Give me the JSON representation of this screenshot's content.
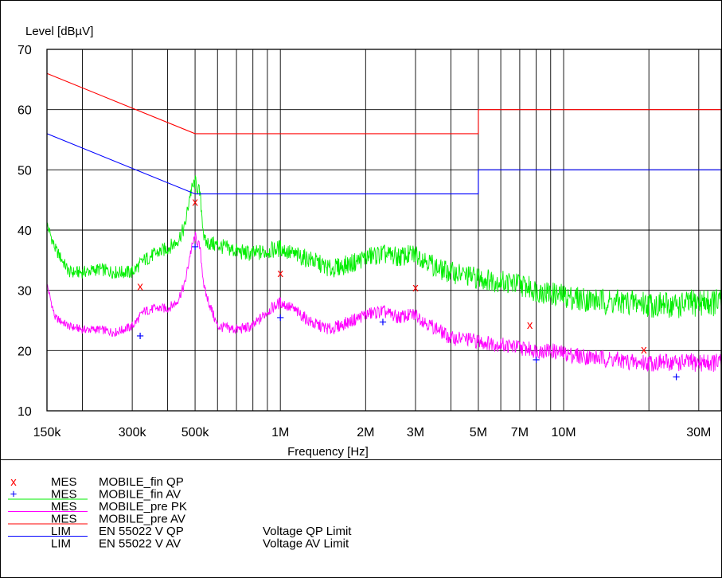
{
  "chart_data": {
    "type": "line",
    "title": "",
    "ylabel": "Level [dBµV]",
    "xlabel": "Frequency [Hz]",
    "x_scale": "log",
    "xlim": [
      150000,
      36000000
    ],
    "ylim": [
      10,
      70
    ],
    "grid": true,
    "x_ticks": [
      {
        "value": 150000,
        "label": "150k"
      },
      {
        "value": 300000,
        "label": "300k"
      },
      {
        "value": 500000,
        "label": "500k"
      },
      {
        "value": 1000000,
        "label": "1M"
      },
      {
        "value": 2000000,
        "label": "2M"
      },
      {
        "value": 3000000,
        "label": "3M"
      },
      {
        "value": 5000000,
        "label": "5M"
      },
      {
        "value": 7000000,
        "label": "7M"
      },
      {
        "value": 10000000,
        "label": "10M"
      },
      {
        "value": 30000000,
        "label": "30M"
      }
    ],
    "y_ticks": [
      {
        "value": 10,
        "label": "10"
      },
      {
        "value": 20,
        "label": "20"
      },
      {
        "value": 30,
        "label": "30"
      },
      {
        "value": 40,
        "label": "40"
      },
      {
        "value": 50,
        "label": "50"
      },
      {
        "value": 60,
        "label": "60"
      },
      {
        "value": 70,
        "label": "70"
      }
    ],
    "series": [
      {
        "name": "MOBILE_fin QP",
        "kind": "markers",
        "marker": "x",
        "color": "#ff0000",
        "x": [
          320000,
          500000,
          1000000,
          3000000,
          7600000,
          19200000
        ],
        "y": [
          30.8,
          44.8,
          33,
          30.6,
          24.4,
          20.3
        ]
      },
      {
        "name": "MOBILE_fin AV",
        "kind": "markers",
        "marker": "+",
        "color": "#0000ff",
        "x": [
          320000,
          500000,
          1000000,
          2300000,
          8000000,
          25000000
        ],
        "y": [
          22.5,
          37.3,
          25.5,
          24.8,
          18.5,
          15.7
        ]
      },
      {
        "name": "MOBILE_pre PK",
        "kind": "line",
        "color": "#00ee00",
        "x": [
          150000,
          160000,
          180000,
          200000,
          230000,
          260000,
          300000,
          330000,
          360000,
          400000,
          430000,
          460000,
          480000,
          500000,
          520000,
          540000,
          600000,
          700000,
          800000,
          900000,
          1000000,
          1100000,
          1300000,
          1500000,
          1800000,
          2000000,
          2300000,
          2600000,
          3000000,
          3300000,
          3600000,
          4000000,
          4500000,
          5000000,
          6000000,
          7000000,
          8000000,
          9000000,
          10000000,
          12000000,
          15000000,
          18000000,
          22000000,
          26000000,
          30000000,
          36000000
        ],
        "y": [
          41,
          37,
          33,
          33,
          33.5,
          33,
          33,
          35,
          36,
          37,
          38,
          40.5,
          46,
          48,
          46,
          38,
          37.5,
          36.5,
          36,
          36.5,
          37,
          36,
          35,
          33.5,
          34.5,
          35.5,
          36,
          35.5,
          36,
          35,
          33.5,
          33,
          32.5,
          32,
          31.5,
          31,
          30,
          29.5,
          29,
          28.5,
          28,
          28,
          27.5,
          27.5,
          28,
          28
        ]
      },
      {
        "name": "MOBILE_pre AV",
        "kind": "line",
        "color": "#ff00ff",
        "x": [
          150000,
          160000,
          180000,
          200000,
          230000,
          260000,
          300000,
          330000,
          360000,
          400000,
          430000,
          460000,
          480000,
          500000,
          520000,
          540000,
          600000,
          700000,
          800000,
          900000,
          1000000,
          1100000,
          1300000,
          1500000,
          1800000,
          2000000,
          2300000,
          2600000,
          3000000,
          3300000,
          3600000,
          4000000,
          4500000,
          5000000,
          6000000,
          7000000,
          8000000,
          9000000,
          10000000,
          12000000,
          15000000,
          18000000,
          22000000,
          26000000,
          30000000,
          36000000
        ],
        "y": [
          31,
          25.5,
          24,
          23.5,
          23.5,
          23,
          24,
          26.5,
          27,
          27,
          28,
          31,
          36,
          39,
          37,
          30,
          24,
          23.5,
          24,
          26.5,
          28,
          27,
          24.5,
          23.5,
          25,
          26,
          26.5,
          25.5,
          26,
          24.5,
          23.5,
          22,
          22,
          21.5,
          21,
          20.5,
          20,
          20,
          19.5,
          19,
          18.5,
          18,
          18,
          18,
          18,
          18
        ]
      },
      {
        "name": "EN 55022 V QP",
        "kind": "limit",
        "color": "#ff0000",
        "x": [
          150000,
          500000,
          5000000,
          5000000,
          30000000,
          36000000
        ],
        "y": [
          66,
          56,
          56,
          60,
          60,
          60
        ]
      },
      {
        "name": "EN 55022 V AV",
        "kind": "limit",
        "color": "#0000ff",
        "x": [
          150000,
          500000,
          5000000,
          5000000,
          30000000,
          36000000
        ],
        "y": [
          56,
          46,
          46,
          50,
          50,
          50
        ]
      }
    ]
  },
  "legend": [
    {
      "type": "MES",
      "name": "MOBILE_fin QP",
      "note": ""
    },
    {
      "type": "MES",
      "name": "MOBILE_fin AV",
      "note": ""
    },
    {
      "type": "MES",
      "name": "MOBILE_pre PK",
      "note": ""
    },
    {
      "type": "MES",
      "name": "MOBILE_pre AV",
      "note": ""
    },
    {
      "type": "LIM",
      "name": "EN 55022 V QP",
      "note": "Voltage QP Limit"
    },
    {
      "type": "LIM",
      "name": "EN 55022 V AV",
      "note": "Voltage AV Limit"
    }
  ]
}
